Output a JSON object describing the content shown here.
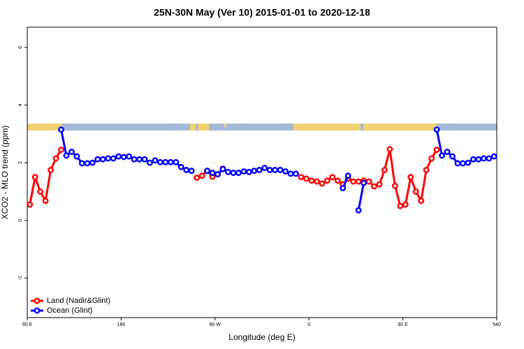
{
  "chart_data": {
    "type": "line",
    "title": "25N-30N May (Ver 10)   2015-01-01 to 2020-12-18",
    "x_label": "Longitude (deg E)",
    "y_label": "XCO2 - MLO trend (ppm)",
    "xlim": [
      90,
      540
    ],
    "ylim": [
      -3.37,
      6.7
    ],
    "xticks": [
      {
        "value": 90,
        "label": "90 E"
      },
      180,
      {
        "value": 270,
        "label": "90 W"
      },
      {
        "value": 360,
        "label": "0"
      },
      {
        "value": 450,
        "label": "90 E"
      },
      540
    ],
    "yticks": [
      -2,
      0,
      2,
      4,
      6
    ],
    "legend": "bottom-left",
    "x": [
      92.5,
      97.5,
      102.5,
      107.5,
      112.5,
      117.5,
      122.5,
      127.5,
      132.5,
      137.5,
      142.5,
      147.5,
      152.5,
      157.5,
      162.5,
      167.5,
      172.5,
      177.5,
      182.5,
      187.5,
      192.5,
      197.5,
      202.5,
      207.5,
      212.5,
      217.5,
      222.5,
      227.5,
      232.5,
      237.5,
      242.5,
      247.5,
      252.5,
      257.5,
      262.5,
      267.5,
      272.5,
      277.5,
      282.5,
      287.5,
      292.5,
      297.5,
      302.5,
      307.5,
      312.5,
      317.5,
      322.5,
      327.5,
      332.5,
      337.5,
      342.5,
      347.5,
      352.5,
      357.5,
      362.5,
      367.5,
      372.5,
      377.5,
      382.5,
      387.5,
      392.5,
      397.5,
      402.5,
      407.5,
      412.5,
      417.5,
      422.5,
      427.5,
      432.5,
      437.5,
      442.5,
      447.5,
      452.5,
      457.5,
      462.5,
      467.5,
      472.5,
      477.5,
      482.5,
      487.5,
      492.5,
      497.5,
      502.5,
      507.5,
      512.5,
      517.5,
      522.5,
      527.5,
      532.5,
      537.5
    ],
    "series": [
      {
        "name": "Land (Nadir&Glint)",
        "color": "#ff0000",
        "values": [
          0.55,
          1.5,
          1.0,
          0.68,
          1.75,
          2.15,
          2.45,
          null,
          null,
          null,
          null,
          null,
          null,
          null,
          null,
          null,
          null,
          null,
          null,
          null,
          null,
          null,
          null,
          null,
          null,
          null,
          null,
          null,
          null,
          null,
          null,
          null,
          1.48,
          1.55,
          1.72,
          1.52,
          1.6,
          1.8,
          null,
          null,
          null,
          null,
          null,
          null,
          null,
          null,
          null,
          null,
          null,
          null,
          null,
          null,
          1.5,
          1.45,
          1.38,
          1.35,
          1.28,
          1.38,
          1.5,
          1.38,
          1.25,
          1.45,
          1.35,
          1.35,
          1.38,
          1.35,
          1.18,
          1.25,
          1.75,
          2.47,
          1.2,
          0.5,
          0.55,
          1.5,
          1.0,
          0.68,
          1.75,
          2.15,
          2.45,
          null,
          null,
          null,
          null,
          null,
          null,
          null,
          null,
          null,
          null,
          null
        ]
      },
      {
        "name": "Ocean (Glint)",
        "color": "#0000ff",
        "values": [
          null,
          null,
          null,
          null,
          null,
          null,
          3.15,
          2.25,
          2.38,
          2.22,
          1.98,
          1.98,
          2.0,
          2.12,
          2.12,
          2.15,
          2.15,
          2.22,
          2.2,
          2.22,
          2.12,
          2.12,
          2.12,
          2.0,
          2.08,
          2.02,
          2.02,
          2.02,
          2.02,
          1.85,
          1.75,
          1.72,
          null,
          null,
          1.72,
          1.65,
          1.6,
          1.78,
          1.68,
          1.65,
          1.65,
          1.7,
          1.68,
          1.72,
          1.75,
          1.82,
          1.75,
          1.75,
          1.75,
          1.7,
          1.62,
          1.62,
          null,
          null,
          null,
          null,
          null,
          null,
          null,
          null,
          1.12,
          1.55,
          null,
          0.35,
          1.3,
          null,
          null,
          null,
          null,
          null,
          null,
          null,
          null,
          null,
          null,
          null,
          null,
          null,
          3.15,
          2.25,
          2.38,
          2.22,
          1.98,
          1.98,
          2.0,
          2.12,
          2.12,
          2.15,
          2.15,
          2.22
        ]
      }
    ]
  }
}
